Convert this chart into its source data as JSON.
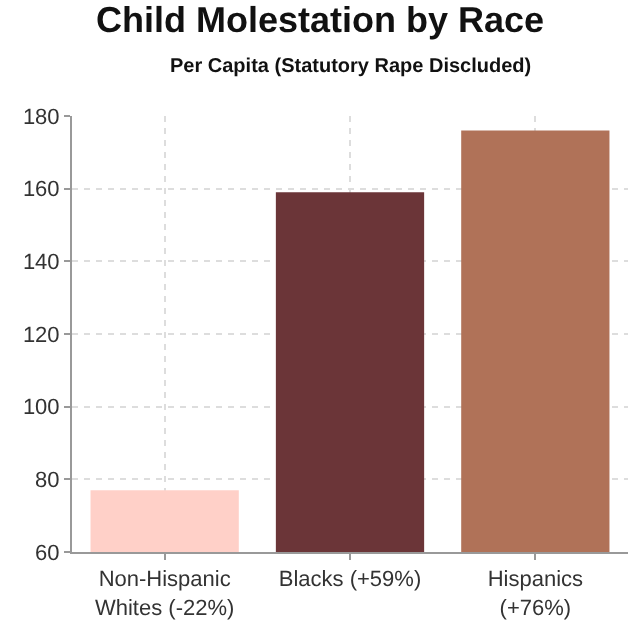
{
  "chart_data": {
    "type": "bar",
    "title": "Child Molestation by Race",
    "subtitle": "Per Capita (Statutory Rape Discluded)",
    "categories": [
      "Non-Hispanic\nWhites (-22%)",
      "Blacks (+59%)",
      "Hispanics\n(+76%)"
    ],
    "values": [
      77,
      159,
      176
    ],
    "colors": [
      "#ffd0c8",
      "#6b3538",
      "#b07258"
    ],
    "ylim": [
      60,
      180
    ],
    "yticks": [
      60,
      80,
      100,
      120,
      140,
      160,
      180
    ],
    "grid": true
  }
}
